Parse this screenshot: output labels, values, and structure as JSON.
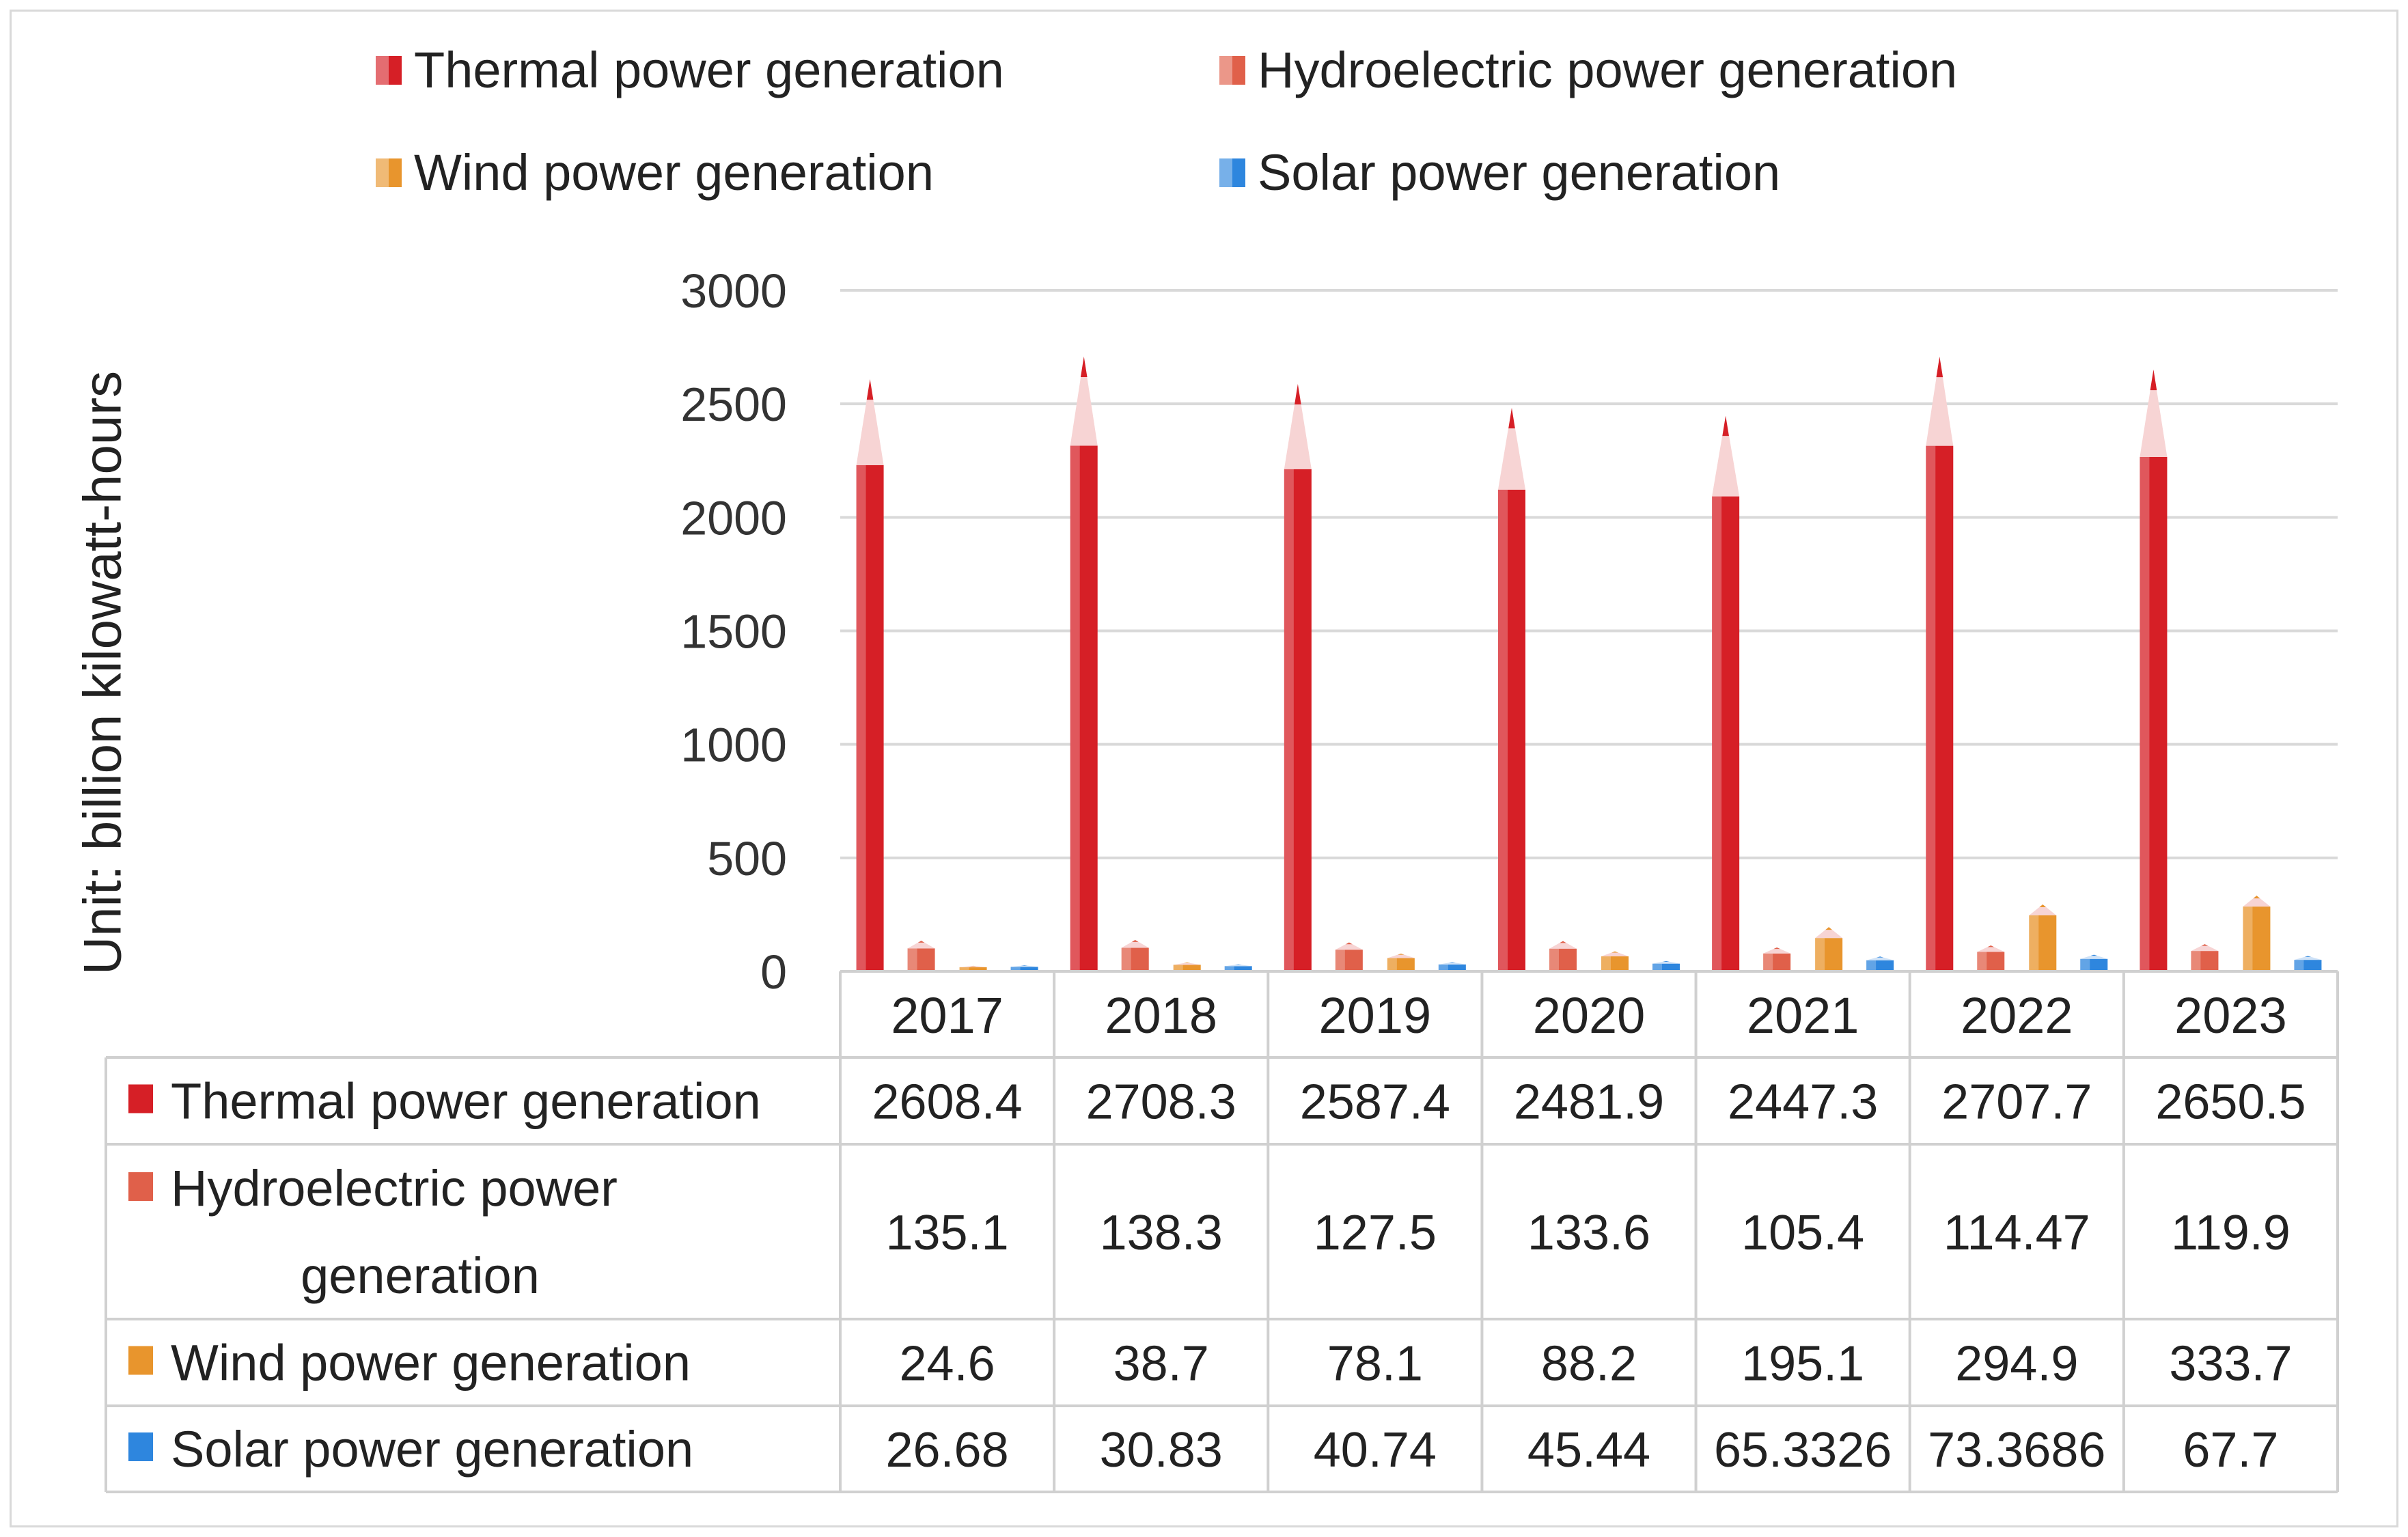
{
  "chart_data": {
    "type": "bar",
    "categories": [
      "2017",
      "2018",
      "2019",
      "2020",
      "2021",
      "2022",
      "2023"
    ],
    "series": [
      {
        "name": "Thermal power generation",
        "color": "#d61f26",
        "values": [
          2608.4,
          2708.3,
          2587.4,
          2481.9,
          2447.3,
          2707.7,
          2650.5
        ],
        "table": [
          "2608.4",
          "2708.3",
          "2587.4",
          "2481.9",
          "2447.3",
          "2707.7",
          "2650.5"
        ]
      },
      {
        "name": "Hydroelectric power generation",
        "color": "#e0604a",
        "values": [
          135.1,
          138.3,
          127.5,
          133.6,
          105.4,
          114.47,
          119.9
        ],
        "table": [
          "135.1",
          "138.3",
          "127.5",
          "133.6",
          "105.4",
          "114.47",
          "119.9"
        ]
      },
      {
        "name": "Wind power generation",
        "color": "#e8952d",
        "values": [
          24.6,
          38.7,
          78.1,
          88.2,
          195.1,
          294.9,
          333.7
        ],
        "table": [
          "24.6",
          "38.7",
          "78.1",
          "88.2",
          "195.1",
          "294.9",
          "333.7"
        ]
      },
      {
        "name": "Solar power generation",
        "color": "#2e86de",
        "values": [
          26.68,
          30.83,
          40.74,
          45.44,
          65.3326,
          73.3686,
          67.7
        ],
        "table": [
          "26.68",
          "30.83",
          "40.74",
          "45.44",
          "65.3326",
          "73.3686",
          "67.7"
        ]
      }
    ],
    "title": "",
    "ylabel": "Unit: billion kilowatt-hours",
    "ylim": [
      0,
      3000
    ],
    "yticks": [
      0,
      500,
      1000,
      1500,
      2000,
      2500,
      3000
    ],
    "grid": true,
    "legend": "top",
    "data_table": true
  }
}
